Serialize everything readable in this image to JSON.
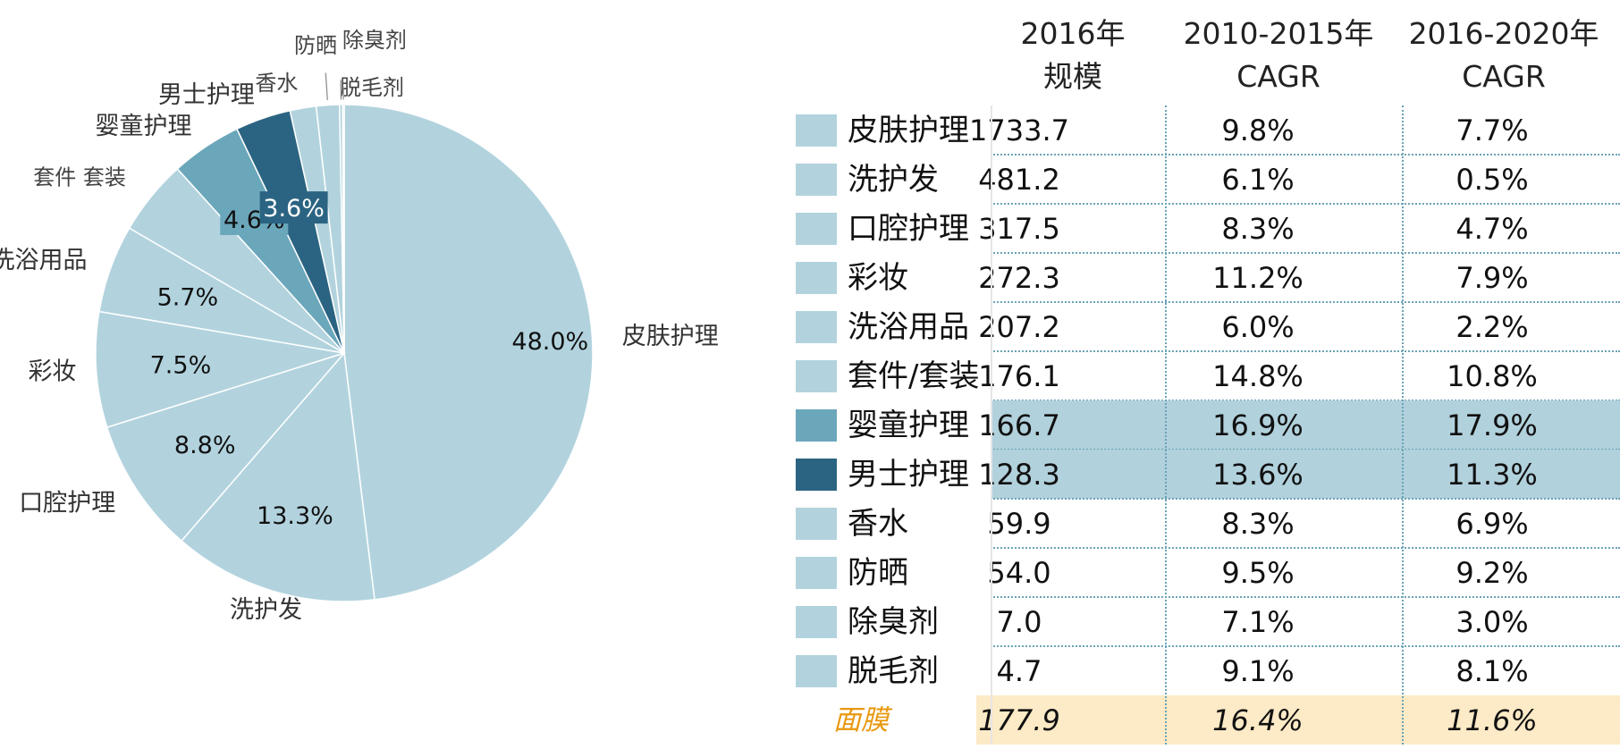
{
  "chart_data": [
    {
      "type": "pie",
      "title": "",
      "slices": [
        {
          "label": "皮肤护理",
          "value": 48.0,
          "value_label": "48.0%",
          "color": "#b2d3de"
        },
        {
          "label": "洗护发",
          "value": 13.3,
          "value_label": "13.3%",
          "color": "#b2d3de"
        },
        {
          "label": "口腔护理",
          "value": 8.8,
          "value_label": "8.8%",
          "color": "#b2d3de"
        },
        {
          "label": "彩妆",
          "value": 7.5,
          "value_label": "7.5%",
          "color": "#b2d3de"
        },
        {
          "label": "洗浴用品",
          "value": 5.7,
          "value_label": "5.7%",
          "color": "#b2d3de"
        },
        {
          "label": "套件 套装",
          "value": 4.9,
          "value_label": "",
          "color": "#b2d3de"
        },
        {
          "label": "婴童护理",
          "value": 4.6,
          "value_label": "4.6%",
          "color": "#6ba7bb"
        },
        {
          "label": "男士护理",
          "value": 3.6,
          "value_label": "3.6%",
          "color": "#2b6482"
        },
        {
          "label": "香水",
          "value": 1.7,
          "value_label": "",
          "color": "#b2d3de"
        },
        {
          "label": "防晒",
          "value": 1.5,
          "value_label": "",
          "color": "#b2d3de"
        },
        {
          "label": "除臭剂",
          "value": 0.2,
          "value_label": "",
          "color": "#b2d3de"
        },
        {
          "label": "脱毛剂",
          "value": 0.1,
          "value_label": "",
          "color": "#b2d3de"
        }
      ]
    },
    {
      "type": "table",
      "columns": [
        "2016年 规模",
        "2010-2015年 CAGR",
        "2016-2020年 CAGR"
      ],
      "column_lines": [
        [
          "2016年",
          "规模"
        ],
        [
          "2010-2015年",
          "CAGR"
        ],
        [
          "2016-2020年",
          "CAGR"
        ]
      ],
      "rows": [
        {
          "category": "皮肤护理",
          "size": "1733.7",
          "cagr_2010_2015": "9.8%",
          "cagr_2016_2020": "7.7%",
          "swatch": "#b2d3de",
          "highlight": false
        },
        {
          "category": "洗护发",
          "size": "481.2",
          "cagr_2010_2015": "6.1%",
          "cagr_2016_2020": "0.5%",
          "swatch": "#b2d3de",
          "highlight": false
        },
        {
          "category": "口腔护理",
          "size": "317.5",
          "cagr_2010_2015": "8.3%",
          "cagr_2016_2020": "4.7%",
          "swatch": "#b2d3de",
          "highlight": false
        },
        {
          "category": "彩妆",
          "size": "272.3",
          "cagr_2010_2015": "11.2%",
          "cagr_2016_2020": "7.9%",
          "swatch": "#b2d3de",
          "highlight": false
        },
        {
          "category": "洗浴用品",
          "size": "207.2",
          "cagr_2010_2015": "6.0%",
          "cagr_2016_2020": "2.2%",
          "swatch": "#b2d3de",
          "highlight": false
        },
        {
          "category": "套件/套装",
          "size": "176.1",
          "cagr_2010_2015": "14.8%",
          "cagr_2016_2020": "10.8%",
          "swatch": "#b2d3de",
          "highlight": false
        },
        {
          "category": "婴童护理",
          "size": "166.7",
          "cagr_2010_2015": "16.9%",
          "cagr_2016_2020": "17.9%",
          "swatch": "#6ba7bb",
          "highlight": true
        },
        {
          "category": "男士护理",
          "size": "128.3",
          "cagr_2010_2015": "13.6%",
          "cagr_2016_2020": "11.3%",
          "swatch": "#2b6482",
          "highlight": true
        },
        {
          "category": "香水",
          "size": "59.9",
          "cagr_2010_2015": "8.3%",
          "cagr_2016_2020": "6.9%",
          "swatch": "#b2d3de",
          "highlight": false
        },
        {
          "category": "防晒",
          "size": "54.0",
          "cagr_2010_2015": "9.5%",
          "cagr_2016_2020": "9.2%",
          "swatch": "#b2d3de",
          "highlight": false
        },
        {
          "category": "除臭剂",
          "size": "7.0",
          "cagr_2010_2015": "7.1%",
          "cagr_2016_2020": "3.0%",
          "swatch": "#b2d3de",
          "highlight": false
        },
        {
          "category": "脱毛剂",
          "size": "4.7",
          "cagr_2010_2015": "9.1%",
          "cagr_2016_2020": "8.1%",
          "swatch": "#b2d3de",
          "highlight": false
        }
      ],
      "extra_row": {
        "category": "面膜",
        "size": "177.9",
        "cagr_2010_2015": "16.4%",
        "cagr_2016_2020": "11.6%",
        "background": "#fdeac6",
        "label_color": "#e8980e"
      }
    }
  ]
}
